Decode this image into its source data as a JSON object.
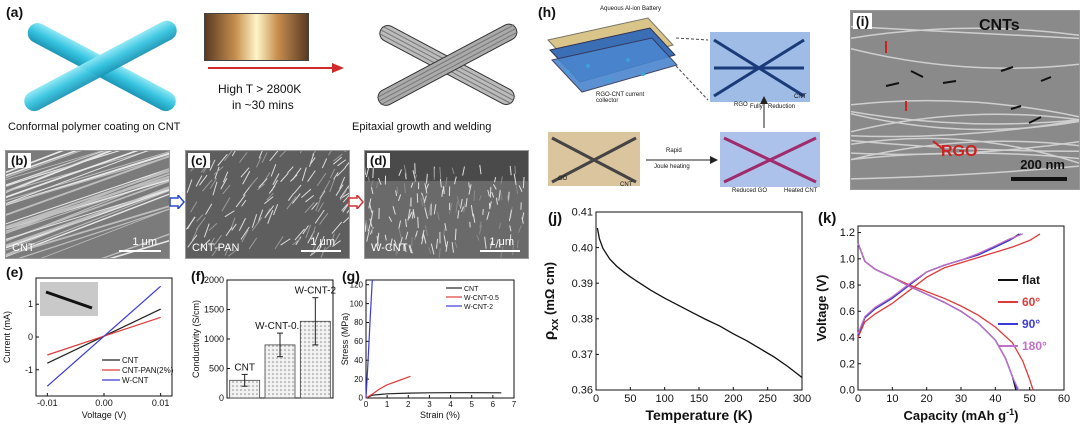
{
  "panel_labels": {
    "a": "(a)",
    "b": "(b)",
    "c": "(c)",
    "d": "(d)",
    "e": "(e)",
    "f": "(f)",
    "g": "(g)",
    "h": "(h)",
    "i": "(i)",
    "j": "(j)",
    "k": "(k)"
  },
  "panel_a": {
    "caption_left": "Conformal polymer coating on CNT",
    "caption_right": "Epitaxial growth and welding",
    "arrow_text_1": "High T > 2800K",
    "arrow_text_2": "in ~30 mins"
  },
  "sem_b": {
    "tag": "CNT",
    "scale": "1 μm"
  },
  "sem_c": {
    "tag": "CNT-PAN",
    "scale": "1 μm"
  },
  "sem_d": {
    "tag": "W-CNT",
    "scale": "1 μm"
  },
  "panel_h": {
    "battery": "Aqueous Al-ion Battery",
    "collector": "RGO-CNT current collector",
    "rgo": "RGO",
    "cnt_top": "CNT",
    "go": "GO",
    "cnt_bottom": "CNT",
    "rapid": "Rapid",
    "joule": "Joule heating",
    "fully": "Fully",
    "reduction": "Reduction",
    "reduced_go": "Reduced GO",
    "heated_cnt": "Heated CNT"
  },
  "panel_i": {
    "cnts": "CNTs",
    "rgo": "RGO",
    "scale": "200 nm"
  },
  "chart_data": [
    {
      "id": "e",
      "type": "line",
      "xlabel": "Voltage (V)",
      "ylabel": "Current (mA)",
      "xlim": [
        -0.012,
        0.012
      ],
      "ylim": [
        -1.8,
        1.8
      ],
      "xticks": [
        -0.01,
        0,
        0.01
      ],
      "xticklabels": [
        "-0.01",
        "0.00",
        "0.01"
      ],
      "yticks": [
        -1,
        0,
        1
      ],
      "series": [
        {
          "name": "CNT",
          "color": "#222222",
          "x": [
            -0.01,
            0.01
          ],
          "y": [
            -0.8,
            0.85
          ]
        },
        {
          "name": "CNT-PAN(2%)",
          "color": "#e03a3a",
          "x": [
            -0.01,
            0.01
          ],
          "y": [
            -0.55,
            0.6
          ]
        },
        {
          "name": "W-CNT",
          "color": "#3a3ad8",
          "x": [
            -0.01,
            0.01
          ],
          "y": [
            -1.5,
            1.55
          ]
        }
      ],
      "legend": "bottom-right"
    },
    {
      "id": "f",
      "type": "bar",
      "ylabel": "Conductivity (S/cm)",
      "ylim": [
        0,
        2000
      ],
      "yticks": [
        0,
        500,
        1000,
        1500,
        2000
      ],
      "categories": [
        "CNT",
        "W-CNT-0.5",
        "W-CNT-2"
      ],
      "values": [
        300,
        900,
        1300
      ],
      "errors": [
        100,
        200,
        400
      ]
    },
    {
      "id": "g",
      "type": "line",
      "xlabel": "Strain (%)",
      "ylabel": "Stress (MPa)",
      "xlim": [
        0,
        7
      ],
      "ylim": [
        0,
        125
      ],
      "xticks": [
        0,
        1,
        2,
        3,
        4,
        5,
        6,
        7
      ],
      "yticks": [
        0,
        20,
        40,
        60,
        80,
        100,
        120
      ],
      "series": [
        {
          "name": "CNT",
          "color": "#222222",
          "x": [
            0,
            0.3,
            1,
            2,
            3,
            4,
            5,
            6.4
          ],
          "y": [
            0,
            3,
            4.5,
            5.2,
            5.5,
            5.6,
            5.6,
            5.5
          ]
        },
        {
          "name": "W-CNT-0.5",
          "color": "#e03a3a",
          "x": [
            0,
            0.3,
            0.6,
            1,
            1.5,
            2.1
          ],
          "y": [
            0,
            4,
            9,
            14,
            18,
            23
          ]
        },
        {
          "name": "W-CNT-2",
          "color": "#3a3ad8",
          "x": [
            0,
            0.1,
            0.2,
            0.3
          ],
          "y": [
            0,
            40,
            85,
            125
          ]
        }
      ],
      "legend": "top-right"
    },
    {
      "id": "j",
      "type": "line",
      "xlabel": "Temperature (K)",
      "ylabel": "ρ",
      "ylabel_sub": "xx",
      "ylabel_unit": " (mΩ cm)",
      "xlim": [
        0,
        300
      ],
      "ylim": [
        0.36,
        0.41
      ],
      "xticks": [
        0,
        50,
        100,
        150,
        200,
        250,
        300
      ],
      "yticks": [
        0.36,
        0.37,
        0.38,
        0.39,
        0.4,
        0.41
      ],
      "yticklabels": [
        "0.36",
        "0.37",
        "0.38",
        "0.39",
        "0.40",
        "0.41"
      ],
      "series": [
        {
          "name": "",
          "color": "#111111",
          "x": [
            2,
            5,
            10,
            20,
            30,
            40,
            50,
            60,
            80,
            100,
            120,
            140,
            160,
            180,
            200,
            220,
            240,
            260,
            280,
            300
          ],
          "y": [
            0.4055,
            0.4025,
            0.3998,
            0.3968,
            0.3948,
            0.3932,
            0.3918,
            0.3905,
            0.388,
            0.3858,
            0.3838,
            0.3818,
            0.3798,
            0.378,
            0.3758,
            0.3738,
            0.3715,
            0.3692,
            0.3665,
            0.3635
          ]
        }
      ]
    },
    {
      "id": "k",
      "type": "line",
      "xlabel": "Capacity (mAh g",
      "xlabel_sup": "-1",
      "xlabel_end": ")",
      "ylabel": "Voltage (V)",
      "xlim": [
        0,
        60
      ],
      "ylim": [
        0,
        1.25
      ],
      "xticks": [
        0,
        10,
        20,
        30,
        40,
        50,
        60
      ],
      "yticks": [
        0,
        0.2,
        0.4,
        0.6,
        0.8,
        1.0,
        1.2
      ],
      "yticklabels": [
        "0.0",
        "0.2",
        "0.4",
        "0.6",
        "0.8",
        "1.0",
        "1.2"
      ],
      "series": [
        {
          "name": "flat",
          "color": "#111111",
          "charge": {
            "x": [
              0,
              2,
              5,
              10,
              15,
              20,
              25,
              30,
              35,
              40,
              44,
              47
            ],
            "y": [
              0.42,
              0.55,
              0.62,
              0.7,
              0.8,
              0.9,
              0.95,
              0.99,
              1.03,
              1.09,
              1.14,
              1.19
            ]
          },
          "discharge": {
            "x": [
              0,
              2,
              5,
              10,
              15,
              20,
              25,
              30,
              35,
              40,
              43,
              45,
              46
            ],
            "y": [
              1.12,
              0.98,
              0.92,
              0.86,
              0.79,
              0.73,
              0.67,
              0.6,
              0.51,
              0.38,
              0.24,
              0.1,
              0.0
            ]
          }
        },
        {
          "name": "60°",
          "color": "#e03a3a",
          "charge": {
            "x": [
              0,
              2,
              5,
              10,
              15,
              20,
              25,
              30,
              35,
              40,
              45,
              50,
              53
            ],
            "y": [
              0.4,
              0.52,
              0.58,
              0.66,
              0.76,
              0.86,
              0.93,
              0.97,
              1.01,
              1.05,
              1.09,
              1.14,
              1.19
            ]
          },
          "discharge": {
            "x": [
              0,
              2,
              5,
              10,
              15,
              20,
              25,
              30,
              35,
              40,
              45,
              48,
              50,
              51
            ],
            "y": [
              1.12,
              0.98,
              0.92,
              0.86,
              0.8,
              0.75,
              0.7,
              0.64,
              0.57,
              0.48,
              0.36,
              0.22,
              0.08,
              0.0
            ]
          }
        },
        {
          "name": "90°",
          "color": "#3a3ad8",
          "charge": {
            "x": [
              0,
              2,
              5,
              10,
              15,
              20,
              25,
              30,
              35,
              40,
              44,
              47.5
            ],
            "y": [
              0.42,
              0.55,
              0.62,
              0.7,
              0.8,
              0.9,
              0.95,
              0.99,
              1.03,
              1.09,
              1.14,
              1.19
            ]
          },
          "discharge": {
            "x": [
              0,
              2,
              5,
              10,
              15,
              20,
              25,
              30,
              35,
              40,
              43,
              45,
              46.5
            ],
            "y": [
              1.12,
              0.98,
              0.92,
              0.86,
              0.79,
              0.73,
              0.67,
              0.6,
              0.51,
              0.38,
              0.24,
              0.1,
              0.0
            ]
          }
        },
        {
          "name": "180°",
          "color": "#c070c8",
          "charge": {
            "x": [
              0,
              2,
              5,
              10,
              15,
              20,
              25,
              30,
              35,
              40,
              44,
              48
            ],
            "y": [
              0.43,
              0.56,
              0.63,
              0.71,
              0.81,
              0.9,
              0.95,
              0.99,
              1.04,
              1.1,
              1.15,
              1.19
            ]
          },
          "discharge": {
            "x": [
              0,
              2,
              5,
              10,
              15,
              20,
              25,
              30,
              35,
              40,
              43,
              45,
              46.8
            ],
            "y": [
              1.12,
              0.98,
              0.92,
              0.86,
              0.79,
              0.73,
              0.67,
              0.6,
              0.51,
              0.38,
              0.24,
              0.1,
              0.0
            ]
          }
        }
      ],
      "legend": "right"
    }
  ]
}
